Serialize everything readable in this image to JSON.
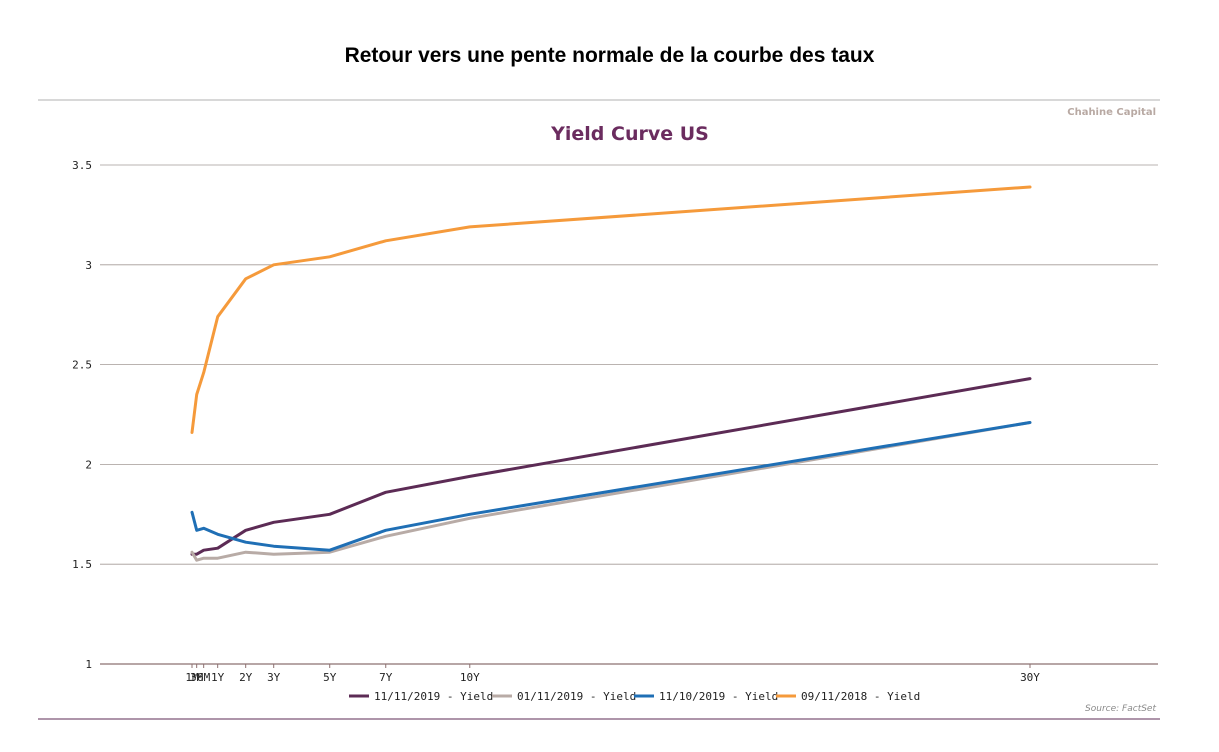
{
  "page_title": "Retour vers une pente normale de la courbe des taux",
  "brand": "Chahine Capital",
  "source": "Source: FactSet",
  "colors": {
    "title": "#6b2c5f",
    "brand": "#b8a9a3",
    "source": "#8a8a8a",
    "grid": "#a39a96",
    "axis": "#8c7070",
    "rule_top": "#b0b0b0",
    "rule_bottom": "#5c2b55"
  },
  "chart_data": {
    "type": "line",
    "title": "Yield Curve US",
    "xlabel": "",
    "ylabel": "",
    "categories": [
      "1M",
      "3M",
      "6M",
      "1Y",
      "2Y",
      "3Y",
      "5Y",
      "7Y",
      "10Y",
      "30Y"
    ],
    "x_years": [
      0.0833,
      0.25,
      0.5,
      1,
      2,
      3,
      5,
      7,
      10,
      30
    ],
    "y_ticks": [
      "1",
      "1.5",
      "2",
      "2.5",
      "3",
      "3.5"
    ],
    "ylim": [
      1,
      3.5
    ],
    "grid": true,
    "legend_position": "bottom",
    "series": [
      {
        "name": "11/11/2019 - Yield",
        "color": "#5c2b55",
        "values": [
          1.55,
          1.55,
          1.57,
          1.58,
          1.67,
          1.71,
          1.75,
          1.86,
          1.94,
          2.43
        ]
      },
      {
        "name": "01/11/2019 - Yield",
        "color": "#b8aba6",
        "values": [
          1.56,
          1.52,
          1.53,
          1.53,
          1.56,
          1.55,
          1.56,
          1.64,
          1.73,
          2.21
        ]
      },
      {
        "name": "11/10/2019 - Yield",
        "color": "#1f6fb5",
        "values": [
          1.76,
          1.67,
          1.68,
          1.65,
          1.61,
          1.59,
          1.57,
          1.67,
          1.75,
          2.21
        ]
      },
      {
        "name": "09/11/2018 - Yield",
        "color": "#f59a3b",
        "values": [
          2.16,
          2.35,
          2.46,
          2.74,
          2.93,
          3.0,
          3.04,
          3.12,
          3.19,
          3.39
        ]
      }
    ]
  }
}
